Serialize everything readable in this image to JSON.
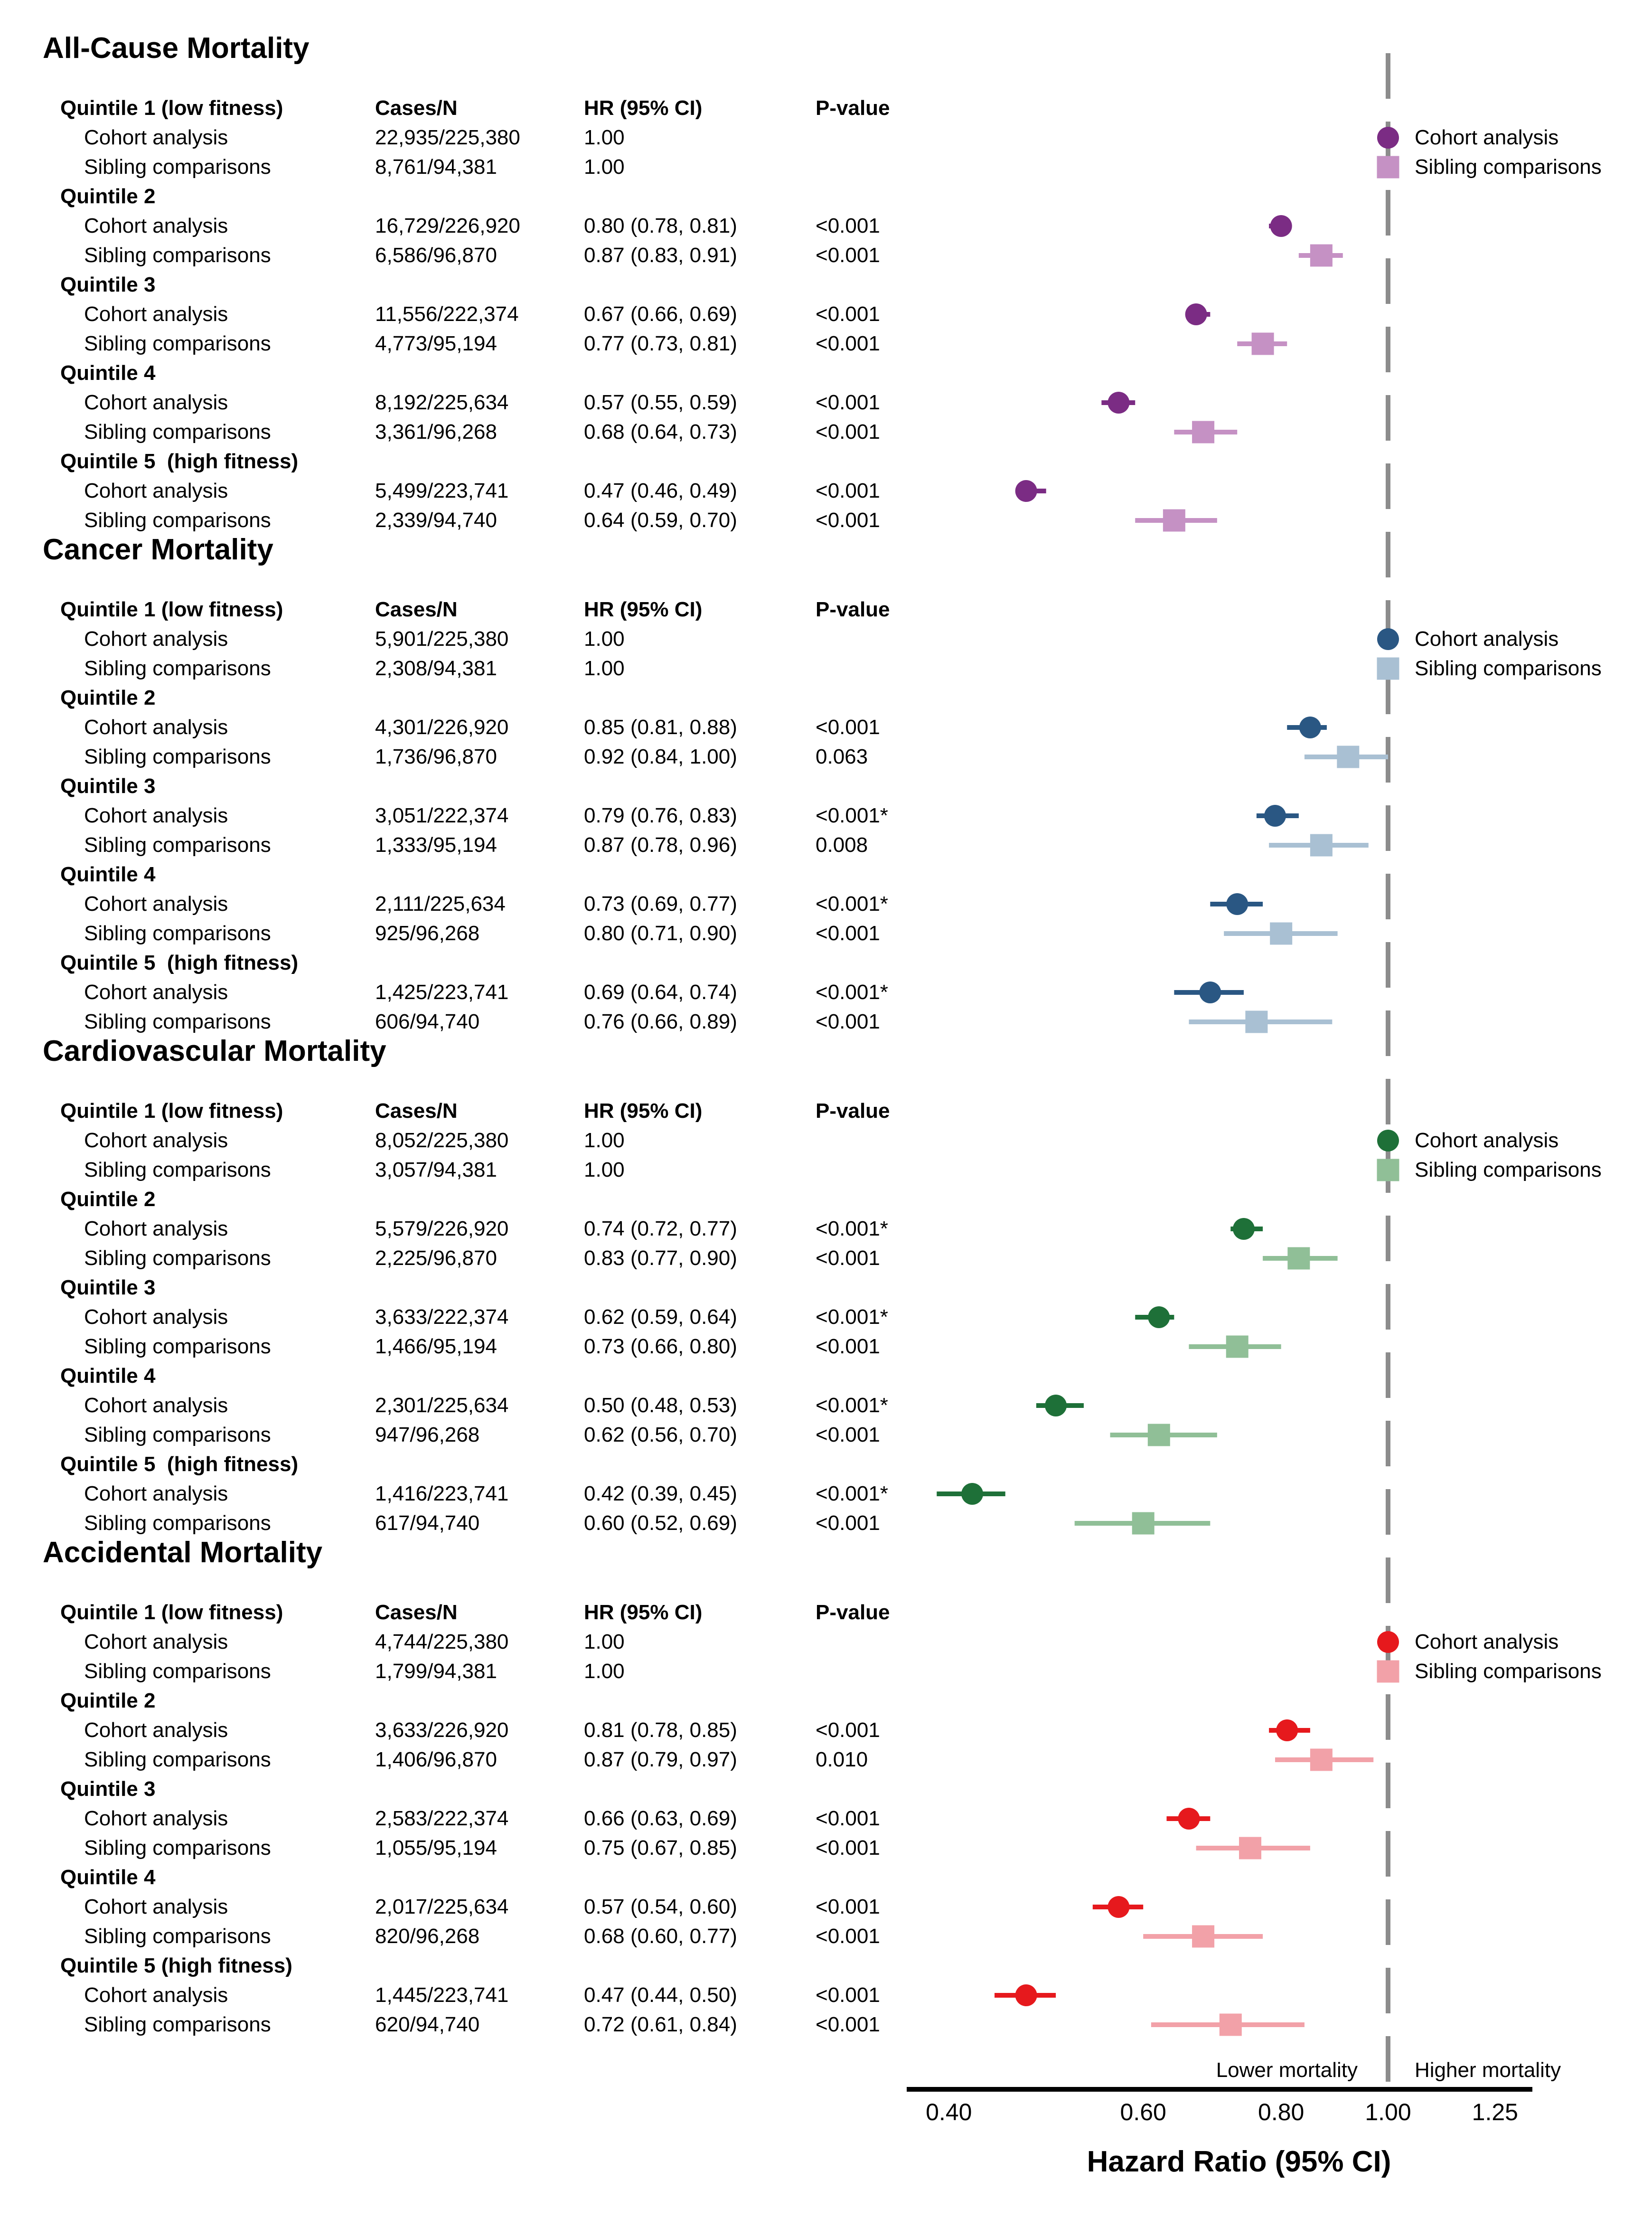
{
  "chart_data": {
    "type": "scatter",
    "subtype": "forest-plot",
    "grid": false,
    "xaxis": {
      "label": "Hazard Ratio (95% CI)",
      "scale": "log",
      "ticks": [
        "0.40",
        "0.60",
        "0.80",
        "1.00",
        "1.25"
      ],
      "tick_values": [
        0.4,
        0.6,
        0.8,
        1.0,
        1.25
      ],
      "range": [
        0.36,
        1.35
      ],
      "reference_line": 1.0,
      "lower_label": "Lower mortality",
      "higher_label": "Higher mortality"
    },
    "legend": {
      "cohort": "Cohort analysis",
      "sibling": "Sibling comparisons",
      "position": "top-right-of-each-section"
    },
    "columns": [
      "Cases/N",
      "HR (95% CI)",
      "P-value"
    ],
    "reference_line_color": "#8C8C8C",
    "sections": [
      {
        "title": "All-Cause Mortality",
        "colors": {
          "cohort": "#7B2C84",
          "sibling": "#C591C4"
        },
        "quintiles": [
          {
            "label": "Quintile 1 (low fitness)",
            "rows": [
              {
                "type": "cohort",
                "label": "Cohort analysis",
                "cases": "22,935/225,380",
                "hr_text": "1.00",
                "p": "",
                "hr": 1.0,
                "lo": null,
                "hi": null
              },
              {
                "type": "sibling",
                "label": "Sibling comparisons",
                "cases": "8,761/94,381",
                "hr_text": "1.00",
                "p": "",
                "hr": 1.0,
                "lo": null,
                "hi": null
              }
            ]
          },
          {
            "label": "Quintile 2",
            "rows": [
              {
                "type": "cohort",
                "label": "Cohort analysis",
                "cases": "16,729/226,920",
                "hr_text": "0.80 (0.78, 0.81)",
                "p": "<0.001",
                "hr": 0.8,
                "lo": 0.78,
                "hi": 0.81
              },
              {
                "type": "sibling",
                "label": "Sibling comparisons",
                "cases": "6,586/96,870",
                "hr_text": "0.87 (0.83, 0.91)",
                "p": "<0.001",
                "hr": 0.87,
                "lo": 0.83,
                "hi": 0.91
              }
            ]
          },
          {
            "label": "Quintile 3",
            "rows": [
              {
                "type": "cohort",
                "label": "Cohort analysis",
                "cases": "11,556/222,374",
                "hr_text": "0.67 (0.66, 0.69)",
                "p": "<0.001",
                "hr": 0.67,
                "lo": 0.66,
                "hi": 0.69
              },
              {
                "type": "sibling",
                "label": "Sibling comparisons",
                "cases": "4,773/95,194",
                "hr_text": "0.77 (0.73, 0.81)",
                "p": "<0.001",
                "hr": 0.77,
                "lo": 0.73,
                "hi": 0.81
              }
            ]
          },
          {
            "label": "Quintile 4",
            "rows": [
              {
                "type": "cohort",
                "label": "Cohort analysis",
                "cases": "8,192/225,634",
                "hr_text": "0.57 (0.55, 0.59)",
                "p": "<0.001",
                "hr": 0.57,
                "lo": 0.55,
                "hi": 0.59
              },
              {
                "type": "sibling",
                "label": "Sibling comparisons",
                "cases": "3,361/96,268",
                "hr_text": "0.68 (0.64, 0.73)",
                "p": "<0.001",
                "hr": 0.68,
                "lo": 0.64,
                "hi": 0.73
              }
            ]
          },
          {
            "label": "Quintile 5  (high fitness)",
            "rows": [
              {
                "type": "cohort",
                "label": "Cohort analysis",
                "cases": "5,499/223,741",
                "hr_text": "0.47 (0.46, 0.49)",
                "p": "<0.001",
                "hr": 0.47,
                "lo": 0.46,
                "hi": 0.49
              },
              {
                "type": "sibling",
                "label": "Sibling comparisons",
                "cases": "2,339/94,740",
                "hr_text": "0.64 (0.59, 0.70)",
                "p": "<0.001",
                "hr": 0.64,
                "lo": 0.59,
                "hi": 0.7
              }
            ]
          }
        ]
      },
      {
        "title": "Cancer Mortality",
        "colors": {
          "cohort": "#2A5783",
          "sibling": "#A9C0D3"
        },
        "quintiles": [
          {
            "label": "Quintile 1 (low fitness)",
            "rows": [
              {
                "type": "cohort",
                "label": "Cohort analysis",
                "cases": "5,901/225,380",
                "hr_text": "1.00",
                "p": "",
                "hr": 1.0,
                "lo": null,
                "hi": null
              },
              {
                "type": "sibling",
                "label": "Sibling comparisons",
                "cases": "2,308/94,381",
                "hr_text": "1.00",
                "p": "",
                "hr": 1.0,
                "lo": null,
                "hi": null
              }
            ]
          },
          {
            "label": "Quintile 2",
            "rows": [
              {
                "type": "cohort",
                "label": "Cohort analysis",
                "cases": "4,301/226,920",
                "hr_text": "0.85 (0.81, 0.88)",
                "p": "<0.001",
                "hr": 0.85,
                "lo": 0.81,
                "hi": 0.88
              },
              {
                "type": "sibling",
                "label": "Sibling comparisons",
                "cases": "1,736/96,870",
                "hr_text": "0.92 (0.84, 1.00)",
                "p": "0.063",
                "hr": 0.92,
                "lo": 0.84,
                "hi": 1.0
              }
            ]
          },
          {
            "label": "Quintile 3",
            "rows": [
              {
                "type": "cohort",
                "label": "Cohort analysis",
                "cases": "3,051/222,374",
                "hr_text": "0.79 (0.76, 0.83)",
                "p": "<0.001*",
                "hr": 0.79,
                "lo": 0.76,
                "hi": 0.83
              },
              {
                "type": "sibling",
                "label": "Sibling comparisons",
                "cases": "1,333/95,194",
                "hr_text": "0.87 (0.78, 0.96)",
                "p": "0.008",
                "hr": 0.87,
                "lo": 0.78,
                "hi": 0.96
              }
            ]
          },
          {
            "label": "Quintile 4",
            "rows": [
              {
                "type": "cohort",
                "label": "Cohort analysis",
                "cases": "2,111/225,634",
                "hr_text": "0.73 (0.69, 0.77)",
                "p": "<0.001*",
                "hr": 0.73,
                "lo": 0.69,
                "hi": 0.77
              },
              {
                "type": "sibling",
                "label": "Sibling comparisons",
                "cases": "925/96,268",
                "hr_text": "0.80 (0.71, 0.90)",
                "p": "<0.001",
                "hr": 0.8,
                "lo": 0.71,
                "hi": 0.9
              }
            ]
          },
          {
            "label": "Quintile 5  (high fitness)",
            "rows": [
              {
                "type": "cohort",
                "label": "Cohort analysis",
                "cases": "1,425/223,741",
                "hr_text": "0.69 (0.64, 0.74)",
                "p": "<0.001*",
                "hr": 0.69,
                "lo": 0.64,
                "hi": 0.74
              },
              {
                "type": "sibling",
                "label": "Sibling comparisons",
                "cases": "606/94,740",
                "hr_text": "0.76 (0.66, 0.89)",
                "p": "<0.001",
                "hr": 0.76,
                "lo": 0.66,
                "hi": 0.89
              }
            ]
          }
        ]
      },
      {
        "title": "Cardiovascular Mortality",
        "colors": {
          "cohort": "#1E7038",
          "sibling": "#90BF97"
        },
        "quintiles": [
          {
            "label": "Quintile 1 (low fitness)",
            "rows": [
              {
                "type": "cohort",
                "label": "Cohort analysis",
                "cases": "8,052/225,380",
                "hr_text": "1.00",
                "p": "",
                "hr": 1.0,
                "lo": null,
                "hi": null
              },
              {
                "type": "sibling",
                "label": "Sibling comparisons",
                "cases": "3,057/94,381",
                "hr_text": "1.00",
                "p": "",
                "hr": 1.0,
                "lo": null,
                "hi": null
              }
            ]
          },
          {
            "label": "Quintile 2",
            "rows": [
              {
                "type": "cohort",
                "label": "Cohort analysis",
                "cases": "5,579/226,920",
                "hr_text": "0.74 (0.72, 0.77)",
                "p": "<0.001*",
                "hr": 0.74,
                "lo": 0.72,
                "hi": 0.77
              },
              {
                "type": "sibling",
                "label": "Sibling comparisons",
                "cases": "2,225/96,870",
                "hr_text": "0.83 (0.77, 0.90)",
                "p": "<0.001",
                "hr": 0.83,
                "lo": 0.77,
                "hi": 0.9
              }
            ]
          },
          {
            "label": "Quintile 3",
            "rows": [
              {
                "type": "cohort",
                "label": "Cohort analysis",
                "cases": "3,633/222,374",
                "hr_text": "0.62 (0.59, 0.64)",
                "p": "<0.001*",
                "hr": 0.62,
                "lo": 0.59,
                "hi": 0.64
              },
              {
                "type": "sibling",
                "label": "Sibling comparisons",
                "cases": "1,466/95,194",
                "hr_text": "0.73 (0.66, 0.80)",
                "p": "<0.001",
                "hr": 0.73,
                "lo": 0.66,
                "hi": 0.8
              }
            ]
          },
          {
            "label": "Quintile 4",
            "rows": [
              {
                "type": "cohort",
                "label": "Cohort analysis",
                "cases": "2,301/225,634",
                "hr_text": "0.50 (0.48, 0.53)",
                "p": "<0.001*",
                "hr": 0.5,
                "lo": 0.48,
                "hi": 0.53
              },
              {
                "type": "sibling",
                "label": "Sibling comparisons",
                "cases": "947/96,268",
                "hr_text": "0.62 (0.56, 0.70)",
                "p": "<0.001",
                "hr": 0.62,
                "lo": 0.56,
                "hi": 0.7
              }
            ]
          },
          {
            "label": "Quintile 5  (high fitness)",
            "rows": [
              {
                "type": "cohort",
                "label": "Cohort analysis",
                "cases": "1,416/223,741",
                "hr_text": "0.42 (0.39, 0.45)",
                "p": "<0.001*",
                "hr": 0.42,
                "lo": 0.39,
                "hi": 0.45
              },
              {
                "type": "sibling",
                "label": "Sibling comparisons",
                "cases": "617/94,740",
                "hr_text": "0.60 (0.52, 0.69)",
                "p": "<0.001",
                "hr": 0.6,
                "lo": 0.52,
                "hi": 0.69
              }
            ]
          }
        ]
      },
      {
        "title": "Accidental Mortality",
        "colors": {
          "cohort": "#E6191D",
          "sibling": "#F2A1A8"
        },
        "quintiles": [
          {
            "label": "Quintile 1 (low fitness)",
            "rows": [
              {
                "type": "cohort",
                "label": "Cohort analysis",
                "cases": "4,744/225,380",
                "hr_text": "1.00",
                "p": "",
                "hr": 1.0,
                "lo": null,
                "hi": null
              },
              {
                "type": "sibling",
                "label": "Sibling comparisons",
                "cases": "1,799/94,381",
                "hr_text": "1.00",
                "p": "",
                "hr": 1.0,
                "lo": null,
                "hi": null
              }
            ]
          },
          {
            "label": "Quintile 2",
            "rows": [
              {
                "type": "cohort",
                "label": "Cohort analysis",
                "cases": "3,633/226,920",
                "hr_text": "0.81 (0.78, 0.85)",
                "p": "<0.001",
                "hr": 0.81,
                "lo": 0.78,
                "hi": 0.85
              },
              {
                "type": "sibling",
                "label": "Sibling comparisons",
                "cases": "1,406/96,870",
                "hr_text": "0.87 (0.79, 0.97)",
                "p": "0.010",
                "hr": 0.87,
                "lo": 0.79,
                "hi": 0.97
              }
            ]
          },
          {
            "label": "Quintile 3",
            "rows": [
              {
                "type": "cohort",
                "label": "Cohort analysis",
                "cases": "2,583/222,374",
                "hr_text": "0.66 (0.63, 0.69)",
                "p": "<0.001",
                "hr": 0.66,
                "lo": 0.63,
                "hi": 0.69
              },
              {
                "type": "sibling",
                "label": "Sibling comparisons",
                "cases": "1,055/95,194",
                "hr_text": "0.75 (0.67, 0.85)",
                "p": "<0.001",
                "hr": 0.75,
                "lo": 0.67,
                "hi": 0.85
              }
            ]
          },
          {
            "label": "Quintile 4",
            "rows": [
              {
                "type": "cohort",
                "label": "Cohort analysis",
                "cases": "2,017/225,634",
                "hr_text": "0.57 (0.54, 0.60)",
                "p": "<0.001",
                "hr": 0.57,
                "lo": 0.54,
                "hi": 0.6
              },
              {
                "type": "sibling",
                "label": "Sibling comparisons",
                "cases": "820/96,268",
                "hr_text": "0.68 (0.60, 0.77)",
                "p": "<0.001",
                "hr": 0.68,
                "lo": 0.6,
                "hi": 0.77
              }
            ]
          },
          {
            "label": "Quintile 5 (high fitness)",
            "rows": [
              {
                "type": "cohort",
                "label": "Cohort analysis",
                "cases": "1,445/223,741",
                "hr_text": "0.47 (0.44, 0.50)",
                "p": "<0.001",
                "hr": 0.47,
                "lo": 0.44,
                "hi": 0.5
              },
              {
                "type": "sibling",
                "label": "Sibling comparisons",
                "cases": "620/94,740",
                "hr_text": "0.72 (0.61, 0.84)",
                "p": "<0.001",
                "hr": 0.72,
                "lo": 0.61,
                "hi": 0.84
              }
            ]
          }
        ]
      }
    ]
  }
}
